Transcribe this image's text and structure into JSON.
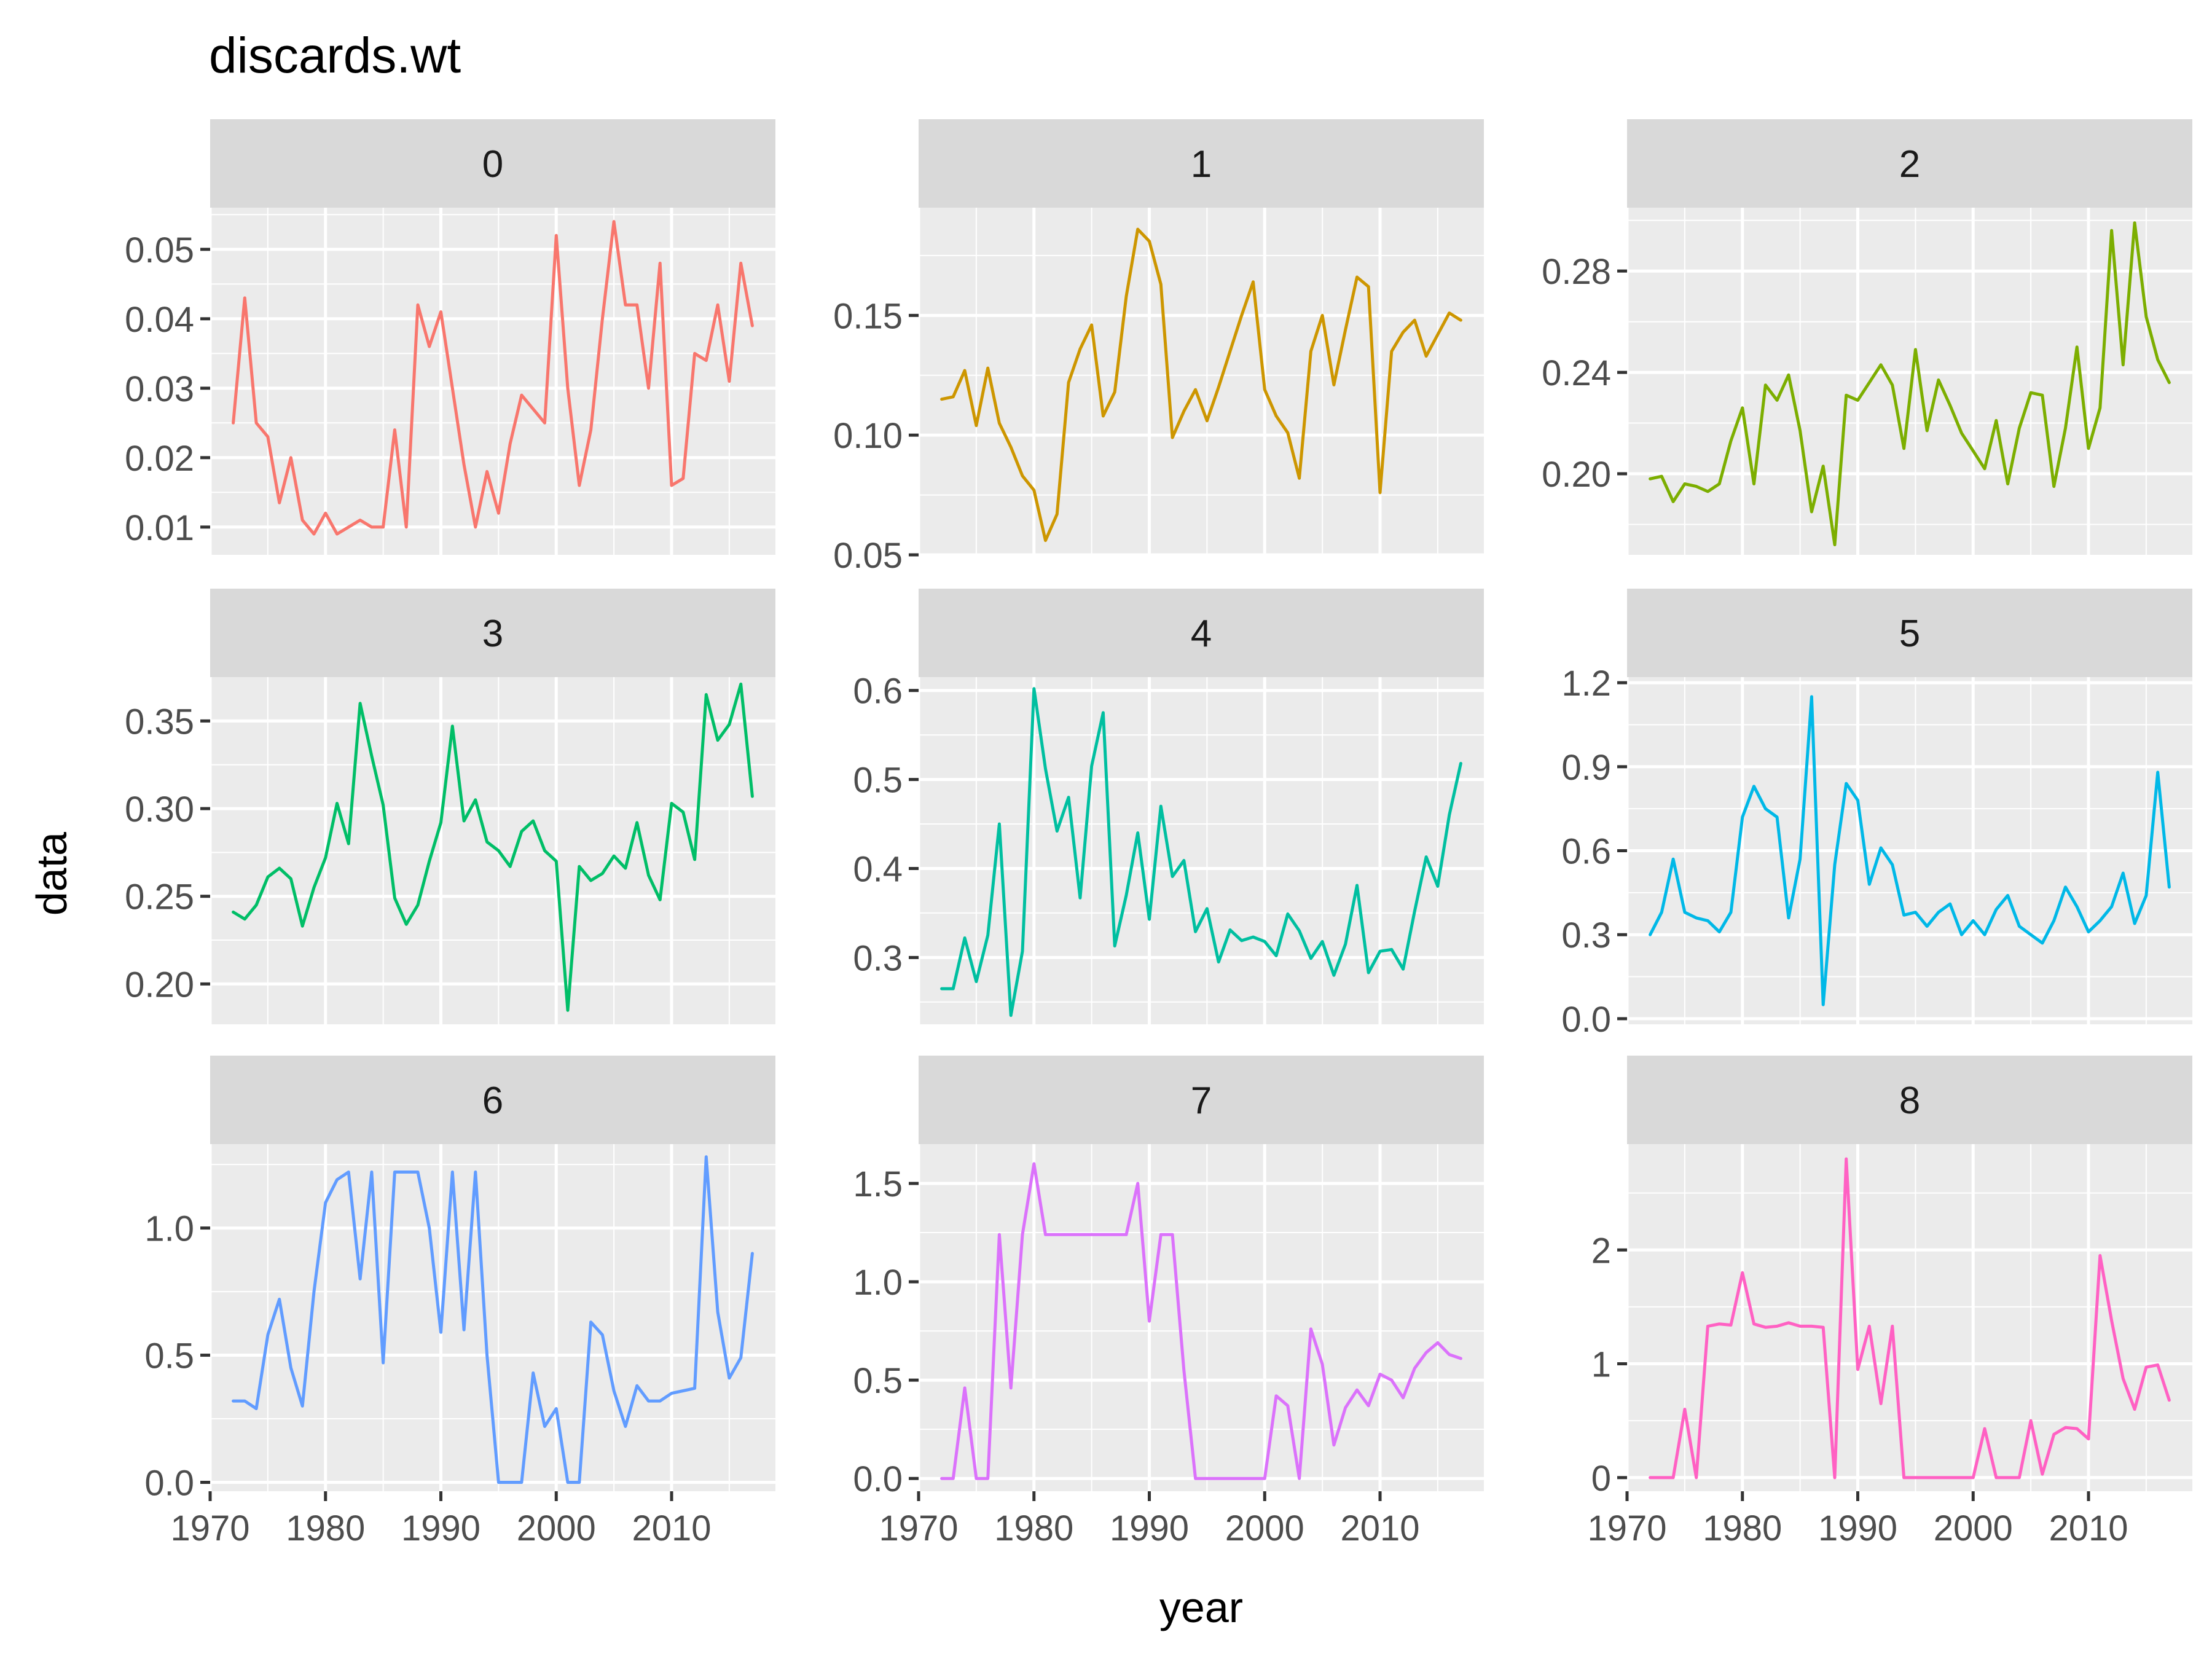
{
  "chart_data": {
    "type": "line",
    "facet": "small-multiples",
    "title": "discards.wt",
    "xlabel": "year",
    "ylabel": "data",
    "x_ticks": [
      1970,
      1980,
      1990,
      2000,
      2010
    ],
    "xlim": [
      1970,
      2019
    ],
    "grid": true,
    "legend": "none",
    "years": [
      1972,
      1973,
      1974,
      1975,
      1976,
      1977,
      1978,
      1979,
      1980,
      1981,
      1982,
      1983,
      1984,
      1985,
      1986,
      1987,
      1988,
      1989,
      1990,
      1991,
      1992,
      1993,
      1994,
      1995,
      1996,
      1997,
      1998,
      1999,
      2000,
      2001,
      2002,
      2003,
      2004,
      2005,
      2006,
      2007,
      2008,
      2009,
      2010,
      2011,
      2012,
      2013,
      2014,
      2015,
      2016,
      2017
    ],
    "panels": [
      {
        "label": "0",
        "color": "#F8766D",
        "ylim": [
          0.006,
          0.056
        ],
        "y_ticks": [
          0.01,
          0.02,
          0.03,
          0.04,
          0.05
        ],
        "y_tick_labels": [
          "0.01",
          "0.02",
          "0.03",
          "0.04",
          "0.05"
        ],
        "values": [
          0.025,
          0.043,
          0.025,
          0.023,
          0.0135,
          0.02,
          0.011,
          0.009,
          0.012,
          0.009,
          0.01,
          0.011,
          0.01,
          0.01,
          0.024,
          0.01,
          0.042,
          0.036,
          0.041,
          0.03,
          0.019,
          0.01,
          0.018,
          0.012,
          0.022,
          0.029,
          0.027,
          0.025,
          0.052,
          0.03,
          0.016,
          0.024,
          0.04,
          0.054,
          0.042,
          0.042,
          0.03,
          0.048,
          0.016,
          0.017,
          0.035,
          0.034,
          0.042,
          0.031,
          0.048,
          0.039
        ]
      },
      {
        "label": "1",
        "color": "#CD9600",
        "ylim": [
          0.05,
          0.195
        ],
        "y_ticks": [
          0.05,
          0.1,
          0.15
        ],
        "y_tick_labels": [
          "0.05",
          "0.10",
          "0.15"
        ],
        "values": [
          0.115,
          0.116,
          0.127,
          0.104,
          0.128,
          0.105,
          0.095,
          0.083,
          0.077,
          0.056,
          0.067,
          0.122,
          0.136,
          0.146,
          0.108,
          0.118,
          0.158,
          0.186,
          0.181,
          0.163,
          0.099,
          0.11,
          0.119,
          0.106,
          0.12,
          0.135,
          0.15,
          0.164,
          0.119,
          0.108,
          0.101,
          0.082,
          0.135,
          0.15,
          0.121,
          0.144,
          0.166,
          0.162,
          0.076,
          0.135,
          0.143,
          0.148,
          0.133,
          0.142,
          0.151,
          0.148
        ]
      },
      {
        "label": "2",
        "color": "#7CAE00",
        "ylim": [
          0.168,
          0.305
        ],
        "y_ticks": [
          0.2,
          0.24,
          0.28
        ],
        "y_tick_labels": [
          "0.20",
          "0.24",
          "0.28"
        ],
        "values": [
          0.198,
          0.199,
          0.189,
          0.196,
          0.195,
          0.193,
          0.196,
          0.213,
          0.226,
          0.196,
          0.235,
          0.229,
          0.239,
          0.217,
          0.185,
          0.203,
          0.172,
          0.231,
          0.229,
          0.236,
          0.243,
          0.235,
          0.21,
          0.249,
          0.217,
          0.237,
          0.227,
          0.216,
          0.209,
          0.202,
          0.221,
          0.196,
          0.218,
          0.232,
          0.231,
          0.195,
          0.218,
          0.25,
          0.21,
          0.226,
          0.296,
          0.243,
          0.299,
          0.262,
          0.245,
          0.236
        ]
      },
      {
        "label": "3",
        "color": "#00BE67",
        "ylim": [
          0.177,
          0.375
        ],
        "y_ticks": [
          0.2,
          0.25,
          0.3,
          0.35
        ],
        "y_tick_labels": [
          "0.20",
          "0.25",
          "0.30",
          "0.35"
        ],
        "values": [
          0.241,
          0.237,
          0.245,
          0.261,
          0.266,
          0.26,
          0.233,
          0.255,
          0.272,
          0.303,
          0.28,
          0.36,
          0.33,
          0.302,
          0.249,
          0.234,
          0.245,
          0.27,
          0.292,
          0.347,
          0.293,
          0.305,
          0.281,
          0.276,
          0.267,
          0.287,
          0.293,
          0.276,
          0.27,
          0.185,
          0.267,
          0.259,
          0.263,
          0.273,
          0.266,
          0.292,
          0.262,
          0.248,
          0.303,
          0.298,
          0.271,
          0.365,
          0.339,
          0.348,
          0.371,
          0.307
        ]
      },
      {
        "label": "4",
        "color": "#00BFC4",
        "line_color": "#00BFA0",
        "ylim": [
          0.225,
          0.615
        ],
        "y_ticks": [
          0.3,
          0.4,
          0.5,
          0.6
        ],
        "y_tick_labels": [
          "0.3",
          "0.4",
          "0.5",
          "0.6"
        ],
        "values": [
          0.265,
          0.265,
          0.322,
          0.273,
          0.325,
          0.45,
          0.235,
          0.307,
          0.602,
          0.512,
          0.442,
          0.48,
          0.367,
          0.515,
          0.575,
          0.313,
          0.37,
          0.44,
          0.343,
          0.47,
          0.391,
          0.409,
          0.329,
          0.355,
          0.295,
          0.331,
          0.319,
          0.323,
          0.318,
          0.302,
          0.349,
          0.33,
          0.299,
          0.318,
          0.28,
          0.315,
          0.381,
          0.283,
          0.307,
          0.309,
          0.287,
          0.352,
          0.413,
          0.38,
          0.46,
          0.518
        ]
      },
      {
        "label": "5",
        "color": "#00B8E7",
        "ylim": [
          -0.02,
          1.22
        ],
        "y_ticks": [
          0.0,
          0.3,
          0.6,
          0.9,
          1.2
        ],
        "y_tick_labels": [
          "0.0",
          "0.3",
          "0.6",
          "0.9",
          "1.2"
        ],
        "values": [
          0.3,
          0.38,
          0.57,
          0.38,
          0.36,
          0.35,
          0.31,
          0.38,
          0.72,
          0.83,
          0.75,
          0.72,
          0.36,
          0.57,
          1.15,
          0.05,
          0.55,
          0.84,
          0.78,
          0.48,
          0.61,
          0.55,
          0.37,
          0.38,
          0.33,
          0.38,
          0.41,
          0.3,
          0.35,
          0.3,
          0.39,
          0.44,
          0.33,
          0.3,
          0.27,
          0.35,
          0.47,
          0.4,
          0.31,
          0.35,
          0.4,
          0.52,
          0.34,
          0.44,
          0.88,
          0.47
        ]
      },
      {
        "label": "6",
        "color": "#619CFF",
        "ylim": [
          -0.035,
          1.33
        ],
        "y_ticks": [
          0.0,
          0.5,
          1.0
        ],
        "y_tick_labels": [
          "0.0",
          "0.5",
          "1.0"
        ],
        "values": [
          0.32,
          0.32,
          0.29,
          0.58,
          0.72,
          0.45,
          0.3,
          0.75,
          1.1,
          1.19,
          1.22,
          0.8,
          1.22,
          0.47,
          1.22,
          1.22,
          1.22,
          1.0,
          0.59,
          1.22,
          0.6,
          1.22,
          0.5,
          0.0,
          0.0,
          0.0,
          0.43,
          0.22,
          0.29,
          0.0,
          0.0,
          0.63,
          0.58,
          0.36,
          0.22,
          0.38,
          0.32,
          0.32,
          0.35,
          0.36,
          0.37,
          1.28,
          0.67,
          0.41,
          0.49,
          0.9
        ]
      },
      {
        "label": "7",
        "color": "#DB72FB",
        "ylim": [
          -0.065,
          1.7
        ],
        "y_ticks": [
          0.0,
          0.5,
          1.0,
          1.5
        ],
        "y_tick_labels": [
          "0.0",
          "0.5",
          "1.0",
          "1.5"
        ],
        "values": [
          0.0,
          0.0,
          0.46,
          0.0,
          0.0,
          1.24,
          0.46,
          1.24,
          1.6,
          1.24,
          1.24,
          1.24,
          1.24,
          1.24,
          1.24,
          1.24,
          1.24,
          1.5,
          0.8,
          1.24,
          1.24,
          0.55,
          0.0,
          0.0,
          0.0,
          0.0,
          0.0,
          0.0,
          0.0,
          0.42,
          0.37,
          0.0,
          0.76,
          0.58,
          0.17,
          0.36,
          0.45,
          0.37,
          0.53,
          0.5,
          0.41,
          0.56,
          0.64,
          0.69,
          0.63,
          0.61
        ]
      },
      {
        "label": "8",
        "color": "#FF61C3",
        "ylim": [
          -0.12,
          2.93
        ],
        "y_ticks": [
          0,
          1,
          2
        ],
        "y_tick_labels": [
          "0",
          "1",
          "2"
        ],
        "values": [
          0.0,
          0.0,
          0.0,
          0.6,
          0.0,
          1.33,
          1.35,
          1.34,
          1.8,
          1.35,
          1.32,
          1.33,
          1.36,
          1.33,
          1.33,
          1.32,
          0.0,
          2.8,
          0.95,
          1.33,
          0.65,
          1.33,
          0.0,
          0.0,
          0.0,
          0.0,
          0.0,
          0.0,
          0.0,
          0.43,
          0.0,
          0.0,
          0.0,
          0.5,
          0.03,
          0.38,
          0.44,
          0.43,
          0.34,
          1.95,
          1.38,
          0.87,
          0.6,
          0.97,
          0.99,
          0.68
        ]
      }
    ]
  }
}
